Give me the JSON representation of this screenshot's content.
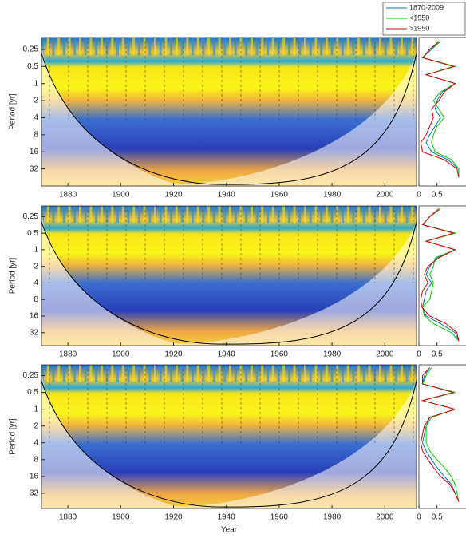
{
  "chart_data": [
    {
      "type": "wavelet",
      "ylabel": "Period [yr]",
      "log_scale": true,
      "xlim": [
        1870,
        2012
      ],
      "xticks": [
        1880,
        1900,
        1920,
        1940,
        1960,
        1980,
        2000
      ],
      "ylim": [
        0.154,
        64
      ],
      "yticks": [
        0.25,
        0.5,
        1,
        2,
        4,
        8,
        16,
        32
      ],
      "legend": "top-right",
      "spectrum": {
        "xlim": [
          0,
          1.3
        ],
        "xticks": [
          0,
          0.5
        ],
        "periods": [
          0.18,
          0.25,
          0.35,
          0.5,
          0.7,
          1,
          1.4,
          2,
          2.8,
          4,
          5.6,
          8,
          11,
          16,
          22,
          32,
          45
        ],
        "series": [
          {
            "name": "1870-2009",
            "color": "#0072bd",
            "values": [
              0.6,
              0.35,
              0.1,
              1.0,
              0.2,
              1.0,
              0.65,
              0.5,
              0.45,
              0.6,
              0.45,
              0.3,
              0.2,
              0.35,
              0.8,
              1.1,
              1.1
            ]
          },
          {
            "name": "<1950",
            "color": "#00cc00",
            "values": [
              0.6,
              0.3,
              0.12,
              1.0,
              0.2,
              1.0,
              0.6,
              0.4,
              0.55,
              0.7,
              0.5,
              0.4,
              0.35,
              0.45,
              0.9,
              1.1,
              1.1
            ]
          },
          {
            "name": ">1950",
            "color": "#e00000",
            "values": [
              0.55,
              0.3,
              0.1,
              0.95,
              0.2,
              1.0,
              0.7,
              0.55,
              0.35,
              0.4,
              0.3,
              0.2,
              0.05,
              0.1,
              0.7,
              1.05,
              1.1
            ]
          }
        ]
      }
    },
    {
      "type": "wavelet",
      "ylabel": "Period [yr]",
      "log_scale": true,
      "xlim": [
        1870,
        2012
      ],
      "xticks": [
        1880,
        1900,
        1920,
        1940,
        1960,
        1980,
        2000
      ],
      "ylim": [
        0.16,
        55
      ],
      "yticks": [
        0.25,
        0.5,
        1,
        2,
        4,
        8,
        16,
        32
      ],
      "spectrum": {
        "xlim": [
          0,
          1.3
        ],
        "xticks": [
          0,
          0.5
        ],
        "periods": [
          0.18,
          0.25,
          0.35,
          0.5,
          0.7,
          1,
          1.4,
          2,
          2.8,
          4,
          5.6,
          8,
          11,
          16,
          22,
          32,
          45
        ],
        "series": [
          {
            "color": "#0072bd",
            "values": [
              0.6,
              0.3,
              0.1,
              1.0,
              0.2,
              1.0,
              0.5,
              0.3,
              0.2,
              0.35,
              0.2,
              0.15,
              0.1,
              0.2,
              0.6,
              1.0,
              1.1
            ]
          },
          {
            "color": "#00cc00",
            "values": [
              0.6,
              0.3,
              0.1,
              1.0,
              0.2,
              1.0,
              0.45,
              0.4,
              0.3,
              0.4,
              0.35,
              0.3,
              0.1,
              0.15,
              0.4,
              0.9,
              1.1
            ]
          },
          {
            "color": "#e00000",
            "values": [
              0.55,
              0.3,
              0.1,
              0.95,
              0.2,
              1.0,
              0.55,
              0.25,
              0.15,
              0.25,
              0.1,
              0.05,
              0.08,
              0.3,
              0.75,
              1.05,
              1.1
            ]
          }
        ]
      }
    },
    {
      "type": "wavelet",
      "ylabel": "Period [yr]",
      "xlabel": "Year",
      "log_scale": true,
      "xlim": [
        1870,
        2012
      ],
      "xticks": [
        1880,
        1900,
        1920,
        1940,
        1960,
        1980,
        2000
      ],
      "ylim": [
        0.16,
        60
      ],
      "yticks": [
        0.25,
        0.5,
        1,
        2,
        4,
        8,
        16,
        32
      ],
      "spectrum": {
        "xlim": [
          0,
          1.3
        ],
        "xticks": [
          0,
          0.5
        ],
        "periods": [
          0.18,
          0.25,
          0.35,
          0.5,
          0.7,
          1,
          1.4,
          2,
          2.8,
          4,
          5.6,
          8,
          11,
          16,
          22,
          32,
          45
        ],
        "series": [
          {
            "color": "#0072bd",
            "values": [
              0.3,
              0.15,
              0.1,
              1.0,
              0.1,
              1.0,
              0.3,
              0.2,
              0.15,
              0.1,
              0.2,
              0.35,
              0.5,
              0.7,
              0.9,
              1.0,
              1.1
            ]
          },
          {
            "color": "#00cc00",
            "values": [
              0.35,
              0.2,
              0.1,
              1.0,
              0.1,
              1.0,
              0.35,
              0.2,
              0.2,
              0.2,
              0.3,
              0.5,
              0.7,
              0.9,
              1.0,
              1.05,
              1.1
            ]
          },
          {
            "color": "#e00000",
            "values": [
              0.3,
              0.1,
              0.1,
              0.95,
              0.1,
              1.0,
              0.3,
              0.15,
              0.1,
              0.05,
              0.1,
              0.25,
              0.4,
              0.6,
              0.85,
              1.0,
              1.1
            ]
          }
        ]
      }
    }
  ]
}
